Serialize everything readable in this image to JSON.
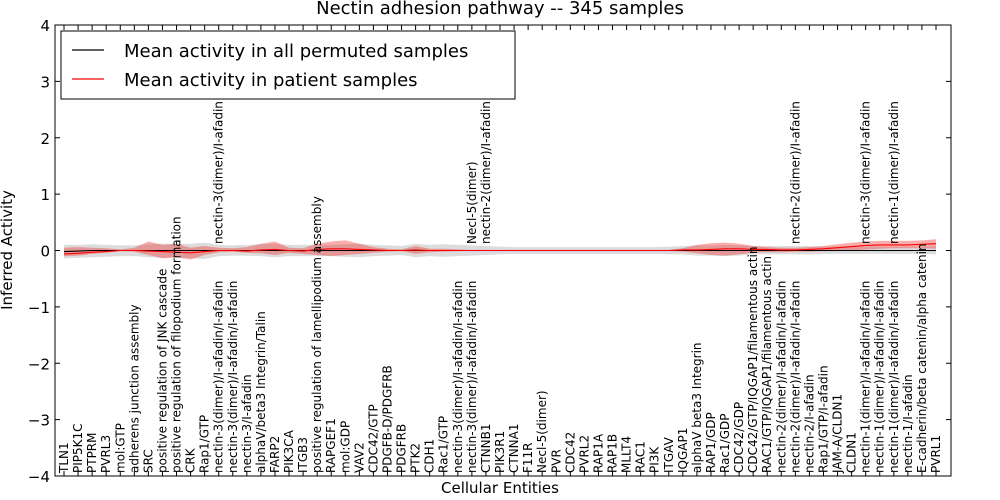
{
  "chart_data": {
    "type": "line",
    "title": "Nectin adhesion pathway -- 345 samples",
    "xlabel": "Cellular Entities",
    "ylabel": "Inferred Activity",
    "ylim": [
      -4,
      4
    ],
    "yticks": [
      -4,
      -3,
      -2,
      -1,
      0,
      1,
      2,
      3,
      4
    ],
    "ytick_labels": [
      "−4",
      "−3",
      "−2",
      "−1",
      "0",
      "1",
      "2",
      "3",
      "4"
    ],
    "legend_position": "top-left",
    "categories": [
      "TLN1",
      "PIP5K1C",
      "PTPRM",
      "PVRL3",
      "mol:GTP",
      "adherens junction assembly",
      "SRC",
      "positive regulation of JNK cascade",
      "positive regulation of filopodium formation",
      "CRK",
      "Rap1/GTP",
      "nectin-3(dimer)/I-afadin/I-afadin",
      "nectin-3(dimer)/I-afadin/I-afadin",
      "nectin-3/I-afadin",
      "alphaV/beta3 Integrin/Talin",
      "FARP2",
      "PIK3CA",
      "ITGB3",
      "positive regulation of lamellipodium assembly",
      "RAPGEF1",
      "mol:GDP",
      "VAV2",
      "CDC42/GTP",
      "PDGFB-D/PDGFRB",
      "PDGFRB",
      "PTK2",
      "CDH1",
      "Rac1/GTP",
      "nectin-3(dimer)/I-afadin/I-afadin",
      "nectin-3(dimer)/I-afadin/I-afadin",
      "CTNNB1",
      "PIK3R1",
      "CTNNA1",
      "F11R",
      "Necl-5(dimer)",
      "PVR",
      "CDC42",
      "PVRL2",
      "RAP1A",
      "RAP1B",
      "MLLT4",
      "RAC1",
      "PI3K",
      "ITGAV",
      "IQGAP1",
      "alphaV beta3 Integrin",
      "RAP1/GDP",
      "Rac1/GDP",
      "CDC42/GDP",
      "CDC42/GTP/IQGAP1/filamentous actin",
      "RAC1/GTP/IQGAP1/filamentous actin",
      "nectin-2(dimer)/I-afadin/I-afadin",
      "nectin-2(dimer)/I-afadin/I-afadin",
      "nectin-2/I-afadin",
      "Rap1/GTP/I-afadin",
      "JAM-A/CLDN1",
      "CLDN1",
      "nectin-1(dimer)/I-afadin/I-afadin",
      "nectin-1(dimer)/I-afadin/I-afadin",
      "nectin-1(dimer)/I-afadin/I-afadin",
      "nectin-1/I-afadin",
      "E-cadherin/beta catenin/alpha catenin",
      "PVRL1"
    ],
    "extra_labels": [
      {
        "index": 11,
        "text": "nectin-3(dimer)/I-afadin"
      },
      {
        "index": 29,
        "text": "Necl-5(dimer)"
      },
      {
        "index": 30,
        "text": "nectin-2(dimer)/I-afadin"
      },
      {
        "index": 52,
        "text": "nectin-2(dimer)/I-afadin"
      },
      {
        "index": 57,
        "text": "nectin-3(dimer)/I-afadin"
      },
      {
        "index": 59,
        "text": "nectin-1(dimer)/I-afadin"
      }
    ],
    "series": [
      {
        "name": "Mean activity in all permuted samples",
        "color": "#000000",
        "values": [
          -0.02,
          -0.01,
          0.0,
          0.0,
          0.0,
          0.0,
          0.0,
          0.0,
          0.0,
          0.0,
          0.0,
          0.0,
          0.0,
          0.0,
          0.0,
          0.0,
          0.0,
          0.0,
          0.0,
          0.0,
          0.0,
          0.0,
          0.0,
          0.0,
          0.0,
          0.0,
          0.0,
          0.0,
          0.0,
          0.0,
          0.0,
          0.0,
          0.0,
          0.0,
          0.0,
          0.0,
          0.0,
          0.0,
          0.0,
          0.0,
          0.0,
          0.0,
          0.0,
          0.0,
          0.0,
          0.0,
          0.0,
          0.0,
          0.0,
          0.0,
          0.0,
          0.0,
          0.0,
          0.0,
          0.0,
          0.0,
          0.0,
          0.0,
          0.0,
          0.0,
          0.0,
          0.0,
          0.0
        ],
        "band_lower": [
          -0.14,
          -0.13,
          -0.12,
          -0.11,
          -0.1,
          -0.1,
          -0.12,
          -0.13,
          -0.12,
          -0.14,
          -0.15,
          -0.1,
          -0.09,
          -0.09,
          -0.1,
          -0.12,
          -0.1,
          -0.1,
          -0.1,
          -0.1,
          -0.11,
          -0.12,
          -0.1,
          -0.09,
          -0.08,
          -0.12,
          -0.1,
          -0.11,
          -0.1,
          -0.09,
          -0.08,
          -0.07,
          -0.06,
          -0.06,
          -0.06,
          -0.06,
          -0.06,
          -0.06,
          -0.06,
          -0.06,
          -0.06,
          -0.06,
          -0.06,
          -0.07,
          -0.07,
          -0.09,
          -0.09,
          -0.1,
          -0.09,
          -0.07,
          -0.07,
          -0.07,
          -0.07,
          -0.07,
          -0.06,
          -0.06,
          -0.06,
          -0.06,
          -0.06,
          -0.06,
          -0.06,
          -0.06,
          -0.07
        ],
        "band_upper": [
          0.1,
          0.1,
          0.11,
          0.1,
          0.09,
          0.09,
          0.11,
          0.12,
          0.12,
          0.12,
          0.14,
          0.1,
          0.09,
          0.1,
          0.11,
          0.12,
          0.1,
          0.1,
          0.1,
          0.1,
          0.11,
          0.12,
          0.1,
          0.09,
          0.08,
          0.12,
          0.1,
          0.11,
          0.1,
          0.09,
          0.08,
          0.07,
          0.06,
          0.06,
          0.06,
          0.06,
          0.06,
          0.06,
          0.06,
          0.06,
          0.06,
          0.06,
          0.06,
          0.07,
          0.08,
          0.09,
          0.09,
          0.1,
          0.09,
          0.08,
          0.08,
          0.08,
          0.08,
          0.08,
          0.07,
          0.07,
          0.07,
          0.07,
          0.07,
          0.07,
          0.07,
          0.07,
          0.08
        ]
      },
      {
        "name": "Mean activity in patient samples",
        "color": "#ff0000",
        "values": [
          -0.06,
          -0.05,
          -0.03,
          -0.02,
          0.0,
          0.0,
          -0.01,
          -0.02,
          -0.03,
          -0.04,
          -0.02,
          0.0,
          0.0,
          -0.01,
          0.01,
          0.02,
          0.0,
          -0.01,
          0.02,
          0.03,
          0.03,
          0.02,
          0.01,
          0.0,
          0.0,
          0.01,
          0.0,
          0.0,
          0.0,
          0.0,
          0.0,
          0.0,
          0.0,
          0.0,
          0.0,
          0.0,
          0.0,
          0.0,
          0.0,
          0.0,
          0.0,
          0.0,
          0.0,
          0.0,
          0.01,
          0.01,
          0.02,
          0.03,
          0.03,
          0.02,
          0.02,
          0.01,
          0.01,
          0.02,
          0.03,
          0.05,
          0.07,
          0.09,
          0.1,
          0.1,
          0.1,
          0.11,
          0.12
        ],
        "band_lower": [
          -0.1,
          -0.09,
          -0.06,
          -0.04,
          -0.01,
          -0.02,
          -0.08,
          -0.14,
          -0.12,
          -0.16,
          -0.08,
          -0.03,
          -0.02,
          -0.04,
          -0.05,
          -0.08,
          -0.04,
          -0.06,
          -0.08,
          -0.1,
          -0.08,
          -0.06,
          -0.04,
          -0.02,
          -0.01,
          -0.06,
          -0.03,
          -0.02,
          -0.01,
          -0.01,
          -0.01,
          -0.01,
          -0.01,
          -0.01,
          -0.01,
          -0.01,
          -0.01,
          -0.01,
          -0.01,
          -0.01,
          -0.01,
          -0.01,
          -0.01,
          -0.01,
          -0.02,
          -0.05,
          -0.08,
          -0.09,
          -0.07,
          -0.04,
          -0.03,
          -0.03,
          -0.02,
          -0.02,
          -0.01,
          -0.01,
          0.0,
          0.02,
          0.03,
          0.04,
          0.04,
          0.04,
          0.03
        ],
        "band_upper": [
          0.05,
          0.06,
          0.05,
          0.04,
          0.02,
          0.05,
          0.16,
          0.1,
          0.12,
          0.05,
          0.08,
          0.05,
          0.04,
          0.06,
          0.12,
          0.16,
          0.05,
          0.04,
          0.12,
          0.16,
          0.18,
          0.12,
          0.06,
          0.03,
          0.02,
          0.08,
          0.03,
          0.03,
          0.02,
          0.01,
          0.01,
          0.01,
          0.01,
          0.01,
          0.01,
          0.01,
          0.01,
          0.01,
          0.01,
          0.01,
          0.01,
          0.01,
          0.01,
          0.01,
          0.04,
          0.1,
          0.13,
          0.14,
          0.12,
          0.08,
          0.06,
          0.05,
          0.05,
          0.06,
          0.08,
          0.11,
          0.14,
          0.16,
          0.17,
          0.17,
          0.17,
          0.18,
          0.2
        ]
      }
    ]
  }
}
